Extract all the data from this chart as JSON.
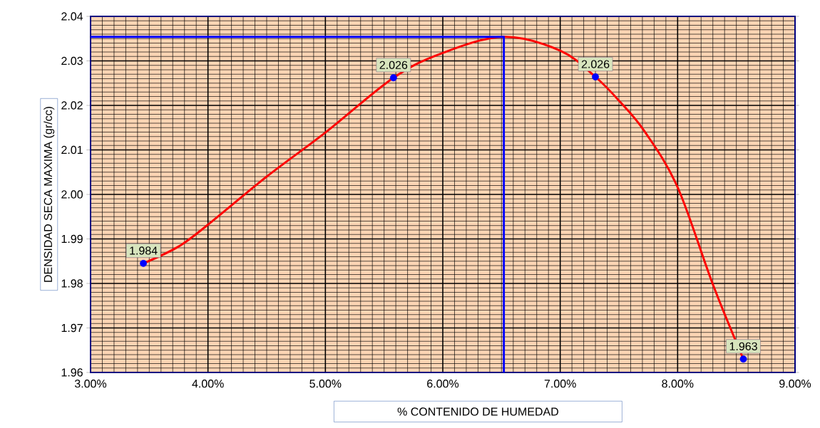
{
  "chart_data": {
    "type": "scatter",
    "xlabel": "% CONTENIDO DE HUMEDAD",
    "ylabel": "DENSIDAD SECA MAXIMA (gr/cc)",
    "xlim": [
      3,
      9
    ],
    "ylim": [
      1.96,
      2.04
    ],
    "xticks": [
      {
        "value": 3,
        "label": "3.00%"
      },
      {
        "value": 4,
        "label": "4.00%"
      },
      {
        "value": 5,
        "label": "5.00%"
      },
      {
        "value": 6,
        "label": "6.00%"
      },
      {
        "value": 7,
        "label": "7.00%"
      },
      {
        "value": 8,
        "label": "8.00%"
      },
      {
        "value": 9,
        "label": "9.00%"
      }
    ],
    "yticks": [
      {
        "value": 1.96,
        "label": "1.96"
      },
      {
        "value": 1.97,
        "label": "1.97"
      },
      {
        "value": 1.98,
        "label": "1.98"
      },
      {
        "value": 1.99,
        "label": "1.99"
      },
      {
        "value": 2.0,
        "label": "2.00"
      },
      {
        "value": 2.01,
        "label": "2.01"
      },
      {
        "value": 2.02,
        "label": "2.02"
      },
      {
        "value": 2.03,
        "label": "2.03"
      },
      {
        "value": 2.04,
        "label": "2.04"
      }
    ],
    "grid": true,
    "series": [
      {
        "type": "line",
        "color": "#ff0000",
        "marker": "none",
        "line_style": "solid",
        "x": [
          3.45,
          3.75,
          4.0,
          4.5,
          5.0,
          5.58,
          6.0,
          6.52,
          7.0,
          7.3,
          7.51,
          7.72,
          8.0,
          8.3,
          8.56
        ],
        "values": [
          1.9845,
          1.9883,
          1.9932,
          2.004,
          2.0139,
          2.0262,
          2.0318,
          2.0354,
          2.0323,
          2.0264,
          2.0208,
          2.0141,
          2.0016,
          1.9798,
          1.963
        ]
      },
      {
        "type": "line",
        "color": "#0000ff",
        "marker": "none",
        "line_style": "solid",
        "x": [
          3,
          6.52,
          6.52
        ],
        "values": [
          2.0354,
          2.0354,
          1.96
        ]
      },
      {
        "color": "#0000ff",
        "marker": "circle",
        "x": [
          3.45,
          5.58,
          7.3,
          8.56
        ],
        "values": [
          1.9845,
          2.0262,
          2.0264,
          1.963
        ],
        "value_labels": [
          "1.984",
          "2.026",
          "2.026",
          "1.963"
        ]
      }
    ]
  }
}
